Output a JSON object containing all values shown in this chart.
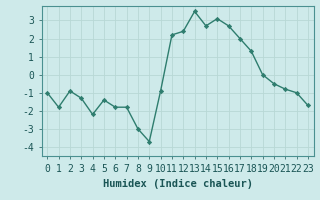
{
  "x": [
    0,
    1,
    2,
    3,
    4,
    5,
    6,
    7,
    8,
    9,
    10,
    11,
    12,
    13,
    14,
    15,
    16,
    17,
    18,
    19,
    20,
    21,
    22,
    23
  ],
  "y": [
    -1.0,
    -1.8,
    -0.9,
    -1.3,
    -2.2,
    -1.4,
    -1.8,
    -1.8,
    -3.0,
    -3.7,
    -0.9,
    2.2,
    2.4,
    3.5,
    2.7,
    3.1,
    2.7,
    2.0,
    1.3,
    0.0,
    -0.5,
    -0.8,
    -1.0,
    -1.7
  ],
  "line_color": "#2e7d6e",
  "marker": "D",
  "marker_size": 2.2,
  "bg_color": "#ceeaea",
  "grid_color_major": "#b8d8d5",
  "grid_color_minor": "#b8d8d5",
  "xlabel": "Humidex (Indice chaleur)",
  "xlabel_fontsize": 7.5,
  "tick_fontsize": 7,
  "ylim": [
    -4.5,
    3.8
  ],
  "xlim": [
    -0.5,
    23.5
  ],
  "yticks": [
    -4,
    -3,
    -2,
    -1,
    0,
    1,
    2,
    3
  ],
  "xticks": [
    0,
    1,
    2,
    3,
    4,
    5,
    6,
    7,
    8,
    9,
    10,
    11,
    12,
    13,
    14,
    15,
    16,
    17,
    18,
    19,
    20,
    21,
    22,
    23
  ],
  "line_width": 1.0,
  "spine_color": "#4a9090"
}
